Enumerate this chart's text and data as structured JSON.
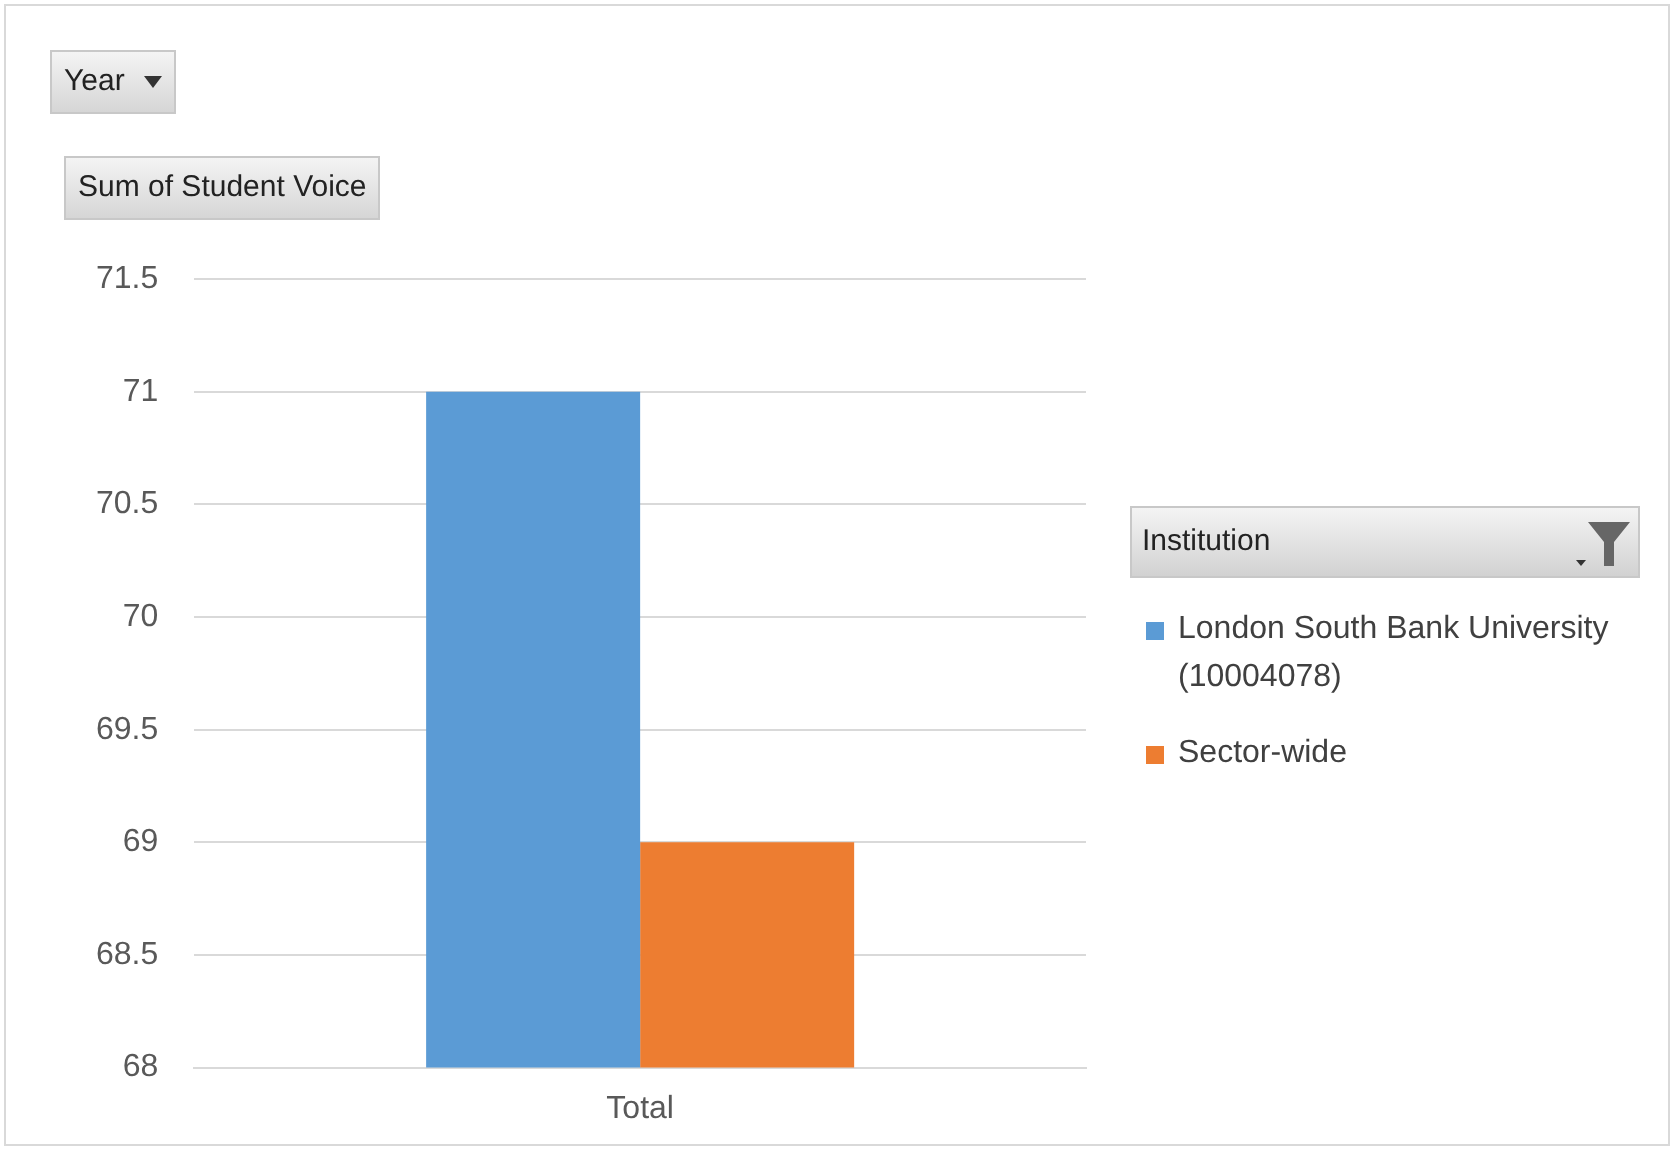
{
  "chart_data": {
    "type": "bar",
    "annotations": [
      "Year"
    ],
    "ylabel": "Sum of Student Voice",
    "legend_title": "Institution",
    "categories": [
      "Total"
    ],
    "series": [
      {
        "name": "London South Bank University (10004078)",
        "color": "#5b9bd5",
        "values": [
          71
        ]
      },
      {
        "name": "Sector-wide",
        "color": "#ed7d31",
        "values": [
          69
        ]
      }
    ],
    "ylim": [
      68,
      71.5
    ],
    "yticks": [
      68,
      68.5,
      69,
      69.5,
      70,
      70.5,
      71,
      71.5
    ],
    "grid": "y",
    "legend": "right"
  }
}
